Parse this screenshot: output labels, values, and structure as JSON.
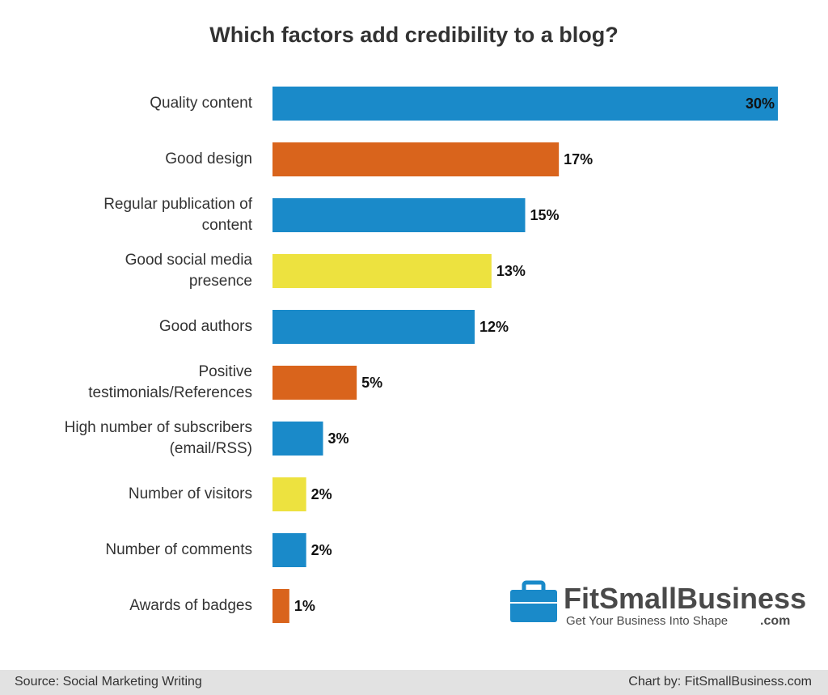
{
  "chart_data": {
    "type": "bar",
    "orientation": "horizontal",
    "title": "Which factors add credibility to a blog?",
    "categories": [
      "Quality content",
      "Good design",
      "Regular publication of\ncontent",
      "Good social media\npresence",
      "Good authors",
      "Positive\ntestimonials/References",
      "High number of subscribers\n(email/RSS)",
      "Number of visitors",
      "Number of comments",
      "Awards of badges"
    ],
    "values": [
      30,
      17,
      15,
      13,
      12,
      5,
      3,
      2,
      2,
      1
    ],
    "value_labels": [
      "30%",
      "17%",
      "15%",
      "13%",
      "12%",
      "5%",
      "3%",
      "2%",
      "2%",
      "1%"
    ],
    "colors": [
      "#1a8ac9",
      "#d9641c",
      "#1a8ac9",
      "#ede23f",
      "#1a8ac9",
      "#d9641c",
      "#1a8ac9",
      "#ede23f",
      "#1a8ac9",
      "#d9641c"
    ],
    "source": "Source: Social Marketing Writing",
    "credit": "Chart by: FitSmallBusiness.com",
    "logo": {
      "name": "FitSmallBusiness",
      "domain": ".com",
      "tagline": "Get Your Business Into Shape"
    }
  }
}
